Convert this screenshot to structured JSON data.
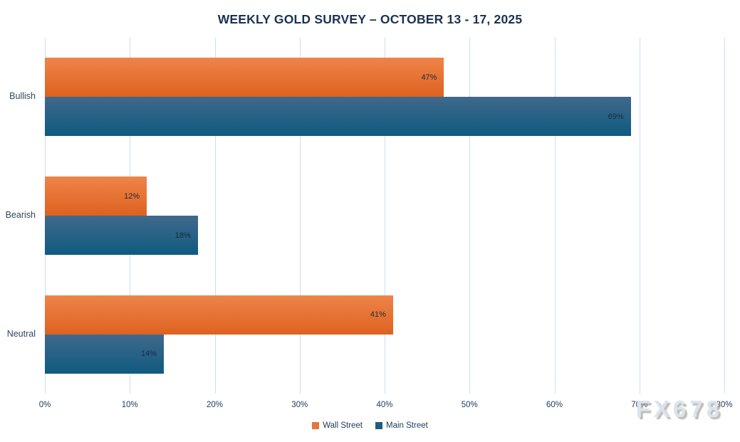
{
  "title": "WEEKLY GOLD SURVEY – OCTOBER 13 - 17, 2025",
  "watermark": "FX678",
  "colors": {
    "title_text": "#1B3252",
    "axis_text": "#1E3A5C",
    "category_text": "#33475C",
    "data_label_text": "#1A2A3A",
    "gridline": "#C9DFF2",
    "watermark_text": "#D9E4F0",
    "series_colors": [
      {
        "name": "Wall Street",
        "top": "#EE8449",
        "bottom": "#DE6220",
        "legend": "#E8743B"
      },
      {
        "name": "Main Street",
        "top": "#40698C",
        "bottom": "#0F5A80",
        "legend": "#1F5C80"
      }
    ]
  },
  "chart_data": {
    "type": "bar",
    "orientation": "horizontal",
    "title": "WEEKLY GOLD SURVEY – OCTOBER 13 - 17, 2025",
    "categories": [
      "Bullish",
      "Bearish",
      "Neutral"
    ],
    "series": [
      {
        "name": "Wall Street",
        "values": [
          47,
          12,
          41
        ]
      },
      {
        "name": "Main Street",
        "values": [
          69,
          18,
          14
        ]
      }
    ],
    "value_suffix": "%",
    "xlabel": "",
    "ylabel": "",
    "xlim": [
      0,
      80
    ],
    "x_ticks": [
      "0%",
      "10%",
      "20%",
      "30%",
      "40%",
      "50%",
      "60%",
      "70%",
      "80%"
    ],
    "grid": true,
    "gridlines": "vertical-only",
    "legend_position": "bottom",
    "data_labels": "inside-end"
  }
}
